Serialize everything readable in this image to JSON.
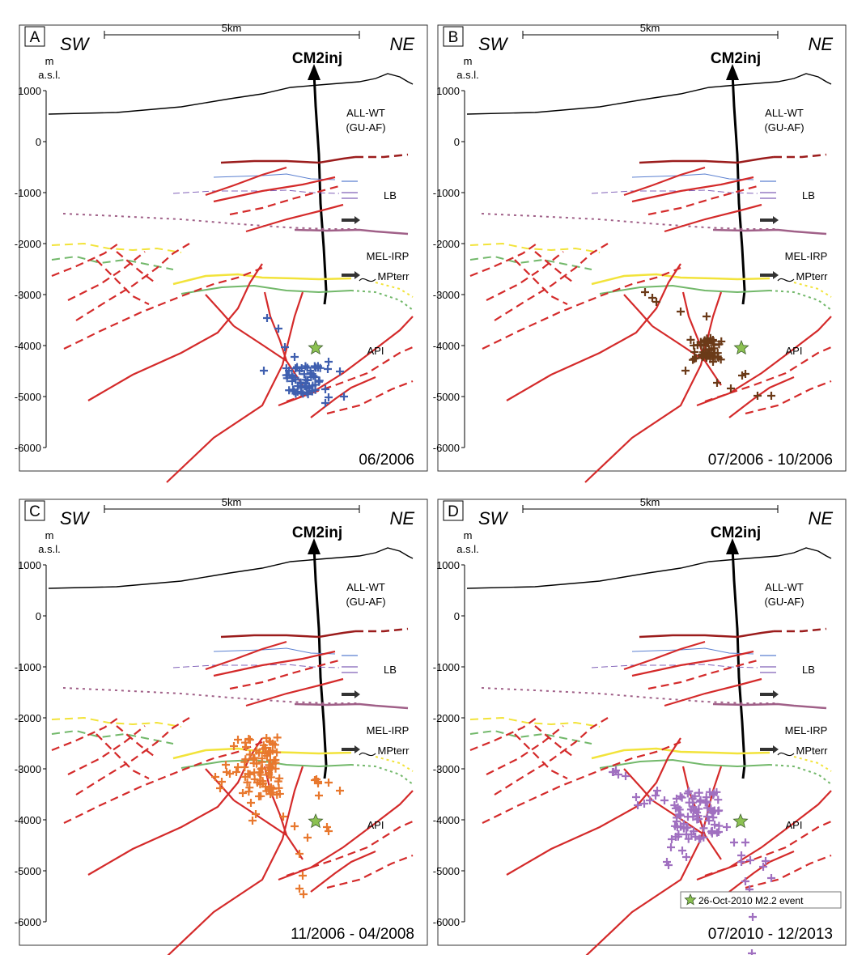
{
  "section": {
    "direction_left": "SW",
    "direction_right": "NE",
    "scale_label": "5km",
    "well_label": "CM2inj",
    "unit_line1": "m",
    "unit_line2": "a.s.l.",
    "y_ticks": [
      1000,
      0,
      -1000,
      -2000,
      -3000,
      -4000,
      -5000,
      -6000
    ],
    "y_tick_labels": [
      "1000",
      "0",
      "-1000",
      "-2000",
      "-3000",
      "-4000",
      "-5000",
      "-6000"
    ],
    "formations": {
      "all_wt_line1": "ALL-WT",
      "all_wt_line2": "(GU-AF)",
      "lb": "LB",
      "mel_irp": "MEL-IRP",
      "mpterr": "MPterr",
      "api": "API"
    }
  },
  "panels": [
    {
      "letter": "A",
      "date_range": "06/2006",
      "event_color": "#3f5faf"
    },
    {
      "letter": "B",
      "date_range": "07/2006 - 10/2006",
      "event_color": "#6b3a18"
    },
    {
      "letter": "C",
      "date_range": "11/2006 - 04/2008",
      "event_color": "#e8782e"
    },
    {
      "letter": "D",
      "date_range": "07/2010 - 12/2013",
      "event_color": "#a070c0"
    }
  ],
  "legend": {
    "label": "26-Oct-2010 M2.2 event",
    "star_color": "#8cc152"
  },
  "colors": {
    "fault": "#d42a2a",
    "dark_red": "#9b1c1c",
    "yellow": "#f2e33a",
    "green": "#72b86a",
    "blue": "#5a7fd0",
    "purple": "#8060b8",
    "mauve": "#a06088",
    "well": "#000000",
    "topography": "#000000"
  },
  "icons": {
    "event_marker": "plus-icon",
    "main_event": "star-icon",
    "wellhead": "triangle-icon",
    "thrust": "arrow-icon"
  }
}
